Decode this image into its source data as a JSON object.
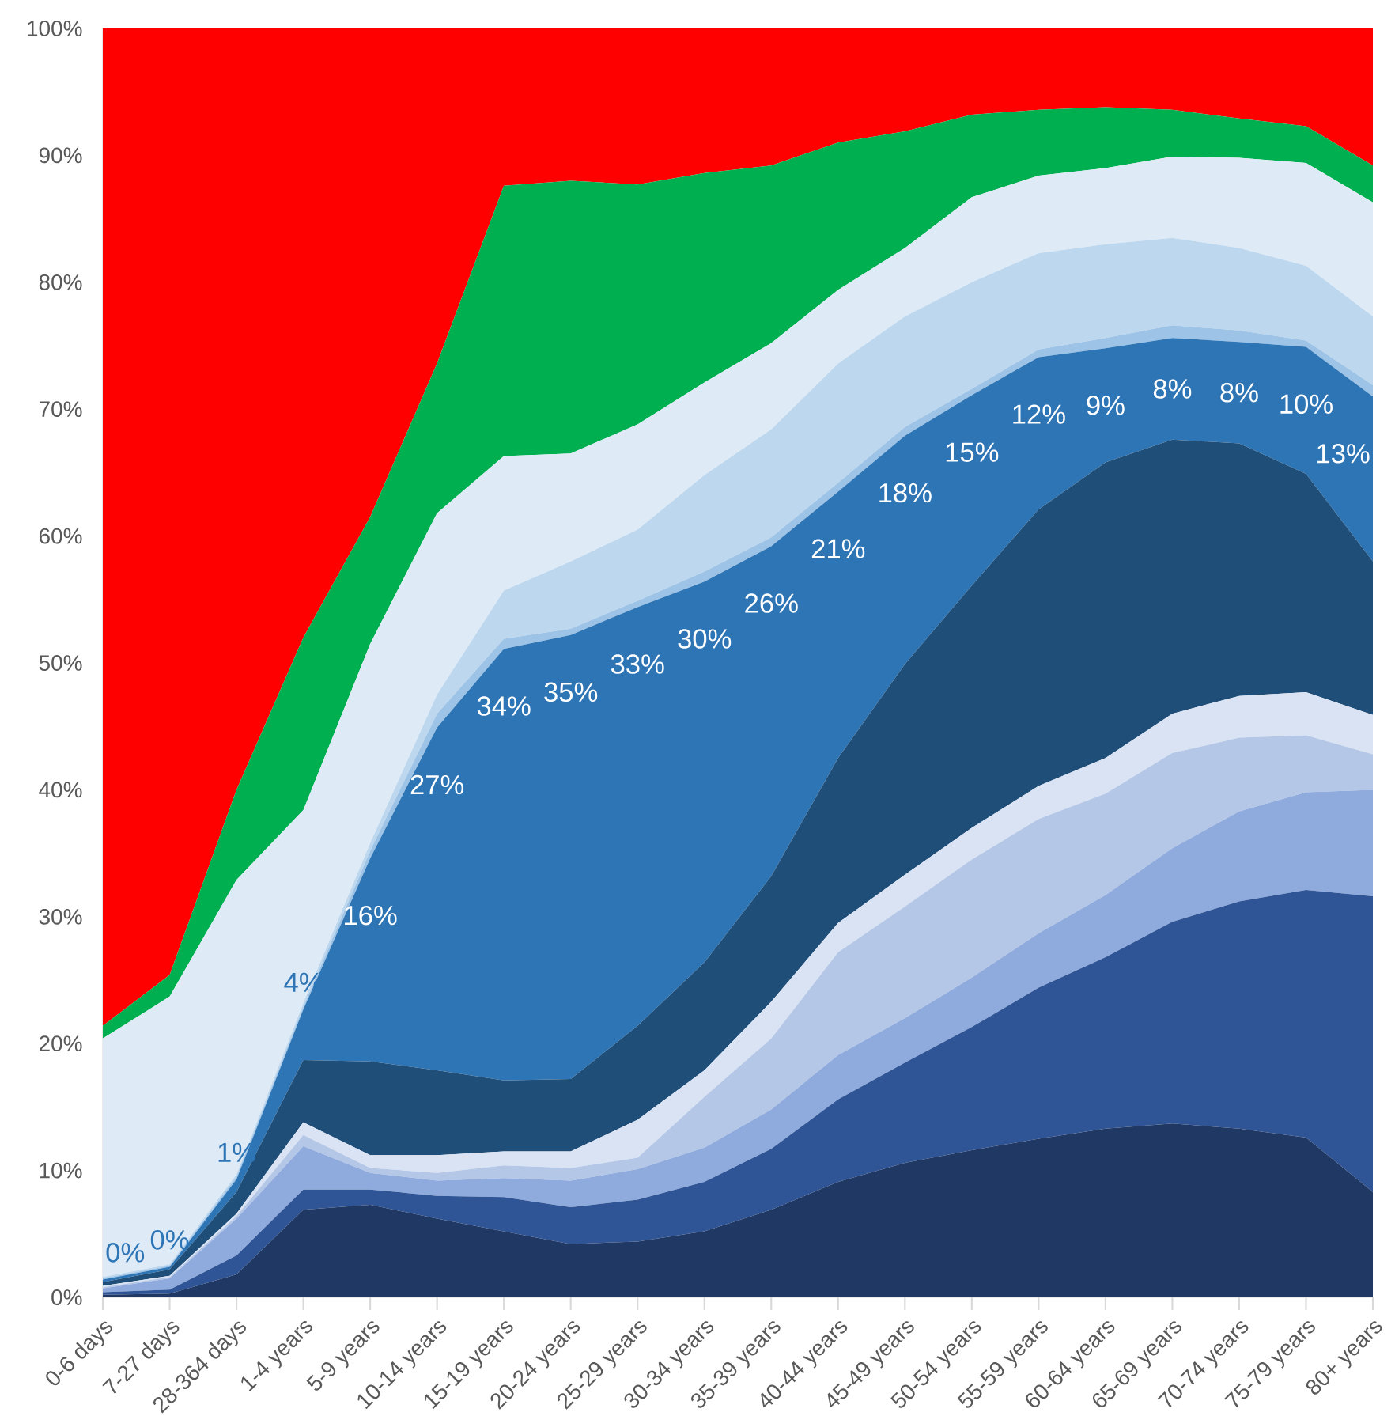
{
  "chart_data": {
    "type": "area",
    "stacked": true,
    "categories": [
      "0-6 days",
      "7-27 days",
      "28-364 days",
      "1-4 years",
      "5-9 years",
      "10-14 years",
      "15-19 years",
      "20-24 years",
      "25-29 years",
      "30-34 years",
      "35-39 years",
      "40-44 years",
      "45-49 years",
      "50-54 years",
      "55-59 years",
      "60-64 years",
      "65-69 years",
      "70-74 years",
      "75-79 years",
      "80+ years"
    ],
    "ylim": [
      0,
      100
    ],
    "yticks": [
      {
        "value": 0,
        "label": "0%"
      },
      {
        "value": 10,
        "label": "10%"
      },
      {
        "value": 20,
        "label": "20%"
      },
      {
        "value": 30,
        "label": "30%"
      },
      {
        "value": 40,
        "label": "40%"
      },
      {
        "value": 50,
        "label": "50%"
      },
      {
        "value": 60,
        "label": "60%"
      },
      {
        "value": 70,
        "label": "70%"
      },
      {
        "value": 80,
        "label": "80%"
      },
      {
        "value": 90,
        "label": "90%"
      },
      {
        "value": 100,
        "label": "100%"
      }
    ],
    "series": [
      {
        "color": "#203864",
        "values": [
          0.2,
          0.3,
          1.8,
          6.9,
          7.3,
          6.2,
          5.2,
          4.2,
          4.4,
          5.2,
          6.9,
          9.1,
          10.6,
          11.6,
          12.5,
          13.3,
          13.7,
          13.3,
          12.6,
          8.3
        ]
      },
      {
        "color": "#2f5597",
        "values": [
          0.2,
          0.3,
          1.5,
          1.6,
          1.2,
          1.8,
          2.7,
          2.9,
          3.3,
          3.9,
          4.8,
          6.5,
          7.9,
          9.7,
          11.9,
          13.5,
          15.9,
          17.9,
          19.5,
          23.3
        ]
      },
      {
        "color": "#8faadc",
        "values": [
          0.3,
          0.9,
          2.9,
          3.4,
          1.3,
          1.2,
          1.5,
          2.1,
          2.4,
          2.7,
          3.1,
          3.5,
          3.5,
          3.9,
          4.3,
          4.9,
          5.8,
          7.1,
          7.7,
          8.4
        ]
      },
      {
        "color": "#b4c7e7",
        "values": [
          0.1,
          0.1,
          0.2,
          0.9,
          0.4,
          0.6,
          1.0,
          1.0,
          0.9,
          4.0,
          5.6,
          8.1,
          8.8,
          9.3,
          9.0,
          8.0,
          7.5,
          5.8,
          4.5,
          2.8
        ]
      },
      {
        "color": "#dae3f3",
        "values": [
          0.1,
          0.1,
          0.2,
          1.0,
          1.0,
          1.4,
          1.1,
          1.3,
          3.0,
          2.1,
          2.9,
          2.3,
          2.5,
          2.5,
          2.6,
          2.8,
          3.1,
          3.3,
          3.4,
          3.1
        ]
      },
      {
        "color": "#1f4e79",
        "values": [
          0.3,
          0.5,
          1.7,
          4.9,
          7.4,
          6.7,
          5.6,
          5.7,
          7.4,
          8.5,
          9.9,
          13.0,
          16.6,
          19.1,
          21.8,
          23.3,
          21.6,
          19.9,
          17.2,
          12.1
        ]
      },
      {
        "color": "#2e75b6",
        "values": [
          0.2,
          0.2,
          1.0,
          4.0,
          16.0,
          27.0,
          34.0,
          35.0,
          33.0,
          30.0,
          26.0,
          21.0,
          18.0,
          15.0,
          12.0,
          9.0,
          8.0,
          8.0,
          10.0,
          13.0
        ],
        "value_labels": [
          "0%",
          "0%",
          "1%",
          "4%",
          "16%",
          "27%",
          "34%",
          "35%",
          "33%",
          "30%",
          "26%",
          "21%",
          "18%",
          "15%",
          "12%",
          "9%",
          "8%",
          "8%",
          "10%",
          "13%"
        ]
      },
      {
        "color": "#9dc3e6",
        "values": [
          0.1,
          0.1,
          0.2,
          0.2,
          0.6,
          1.1,
          0.8,
          0.5,
          0.5,
          0.8,
          0.7,
          0.7,
          0.7,
          0.5,
          0.6,
          0.8,
          1.0,
          0.9,
          0.5,
          0.9
        ]
      },
      {
        "color": "#bdd7ee",
        "values": [
          0.1,
          0.1,
          0.2,
          0.3,
          0.6,
          1.5,
          3.8,
          5.3,
          5.6,
          7.6,
          8.5,
          9.4,
          8.7,
          8.4,
          7.6,
          7.4,
          6.9,
          6.5,
          5.9,
          5.4
        ]
      },
      {
        "color": "#deebf7",
        "values": [
          18.8,
          21.1,
          23.2,
          15.2,
          15.7,
          14.3,
          10.6,
          8.5,
          8.3,
          7.3,
          6.8,
          5.8,
          5.4,
          6.7,
          6.1,
          6.0,
          6.4,
          7.1,
          8.1,
          9.0
        ]
      },
      {
        "color": "#00b050",
        "values": [
          1.0,
          1.7,
          7.1,
          13.6,
          10.0,
          11.8,
          21.3,
          21.5,
          18.9,
          16.5,
          14.0,
          11.6,
          9.2,
          6.5,
          5.2,
          4.8,
          3.7,
          3.1,
          2.9,
          2.9
        ]
      },
      {
        "color": "#ff0000",
        "values": [
          78.6,
          74.6,
          60.0,
          48.0,
          38.5,
          26.4,
          12.4,
          12.0,
          12.3,
          11.4,
          10.8,
          9.0,
          8.1,
          6.8,
          6.4,
          6.2,
          6.4,
          7.1,
          7.7,
          10.8
        ]
      }
    ]
  }
}
